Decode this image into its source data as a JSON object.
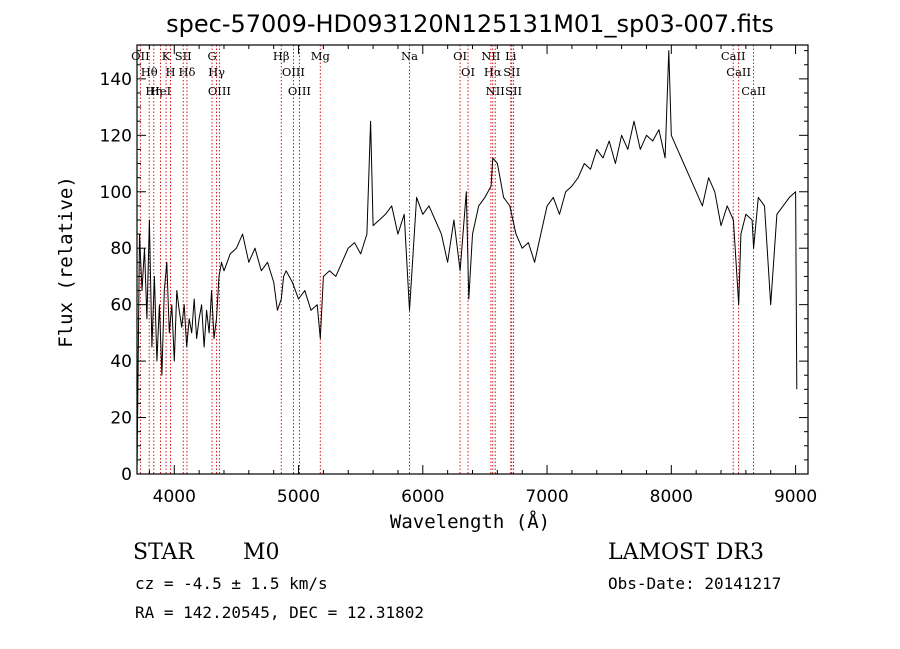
{
  "chart_data": {
    "type": "line",
    "title": "spec-57009-HD093120N125131M01_sp03-007.fits",
    "xlabel": "Wavelength (Å)",
    "ylabel": "Flux (relative)",
    "xlim": [
      3700,
      9100
    ],
    "ylim": [
      0,
      152
    ],
    "x_ticks": [
      4000,
      5000,
      6000,
      7000,
      8000,
      9000
    ],
    "y_ticks": [
      0,
      20,
      40,
      60,
      80,
      100,
      120,
      140
    ],
    "grid": false,
    "colors": {
      "spectrum": "#000000",
      "line_markers": "#cc0000"
    },
    "series": [
      {
        "x": [
          3700,
          3720,
          3740,
          3760,
          3780,
          3800,
          3820,
          3840,
          3860,
          3880,
          3900,
          3920,
          3940,
          3960,
          3980,
          4000,
          4020,
          4040,
          4060,
          4080,
          4100,
          4120,
          4140,
          4160,
          4180,
          4200,
          4220,
          4240,
          4260,
          4280,
          4300,
          4320,
          4340,
          4360,
          4380,
          4400,
          4450,
          4500,
          4550,
          4600,
          4650,
          4700,
          4750,
          4800,
          4830,
          4861,
          4880,
          4900,
          4950,
          5000,
          5050,
          5100,
          5150,
          5175,
          5200,
          5250,
          5300,
          5350,
          5400,
          5450,
          5500,
          5550,
          5580,
          5600,
          5650,
          5700,
          5750,
          5800,
          5850,
          5893,
          5950,
          6000,
          6050,
          6100,
          6150,
          6200,
          6250,
          6300,
          6350,
          6370,
          6400,
          6450,
          6500,
          6550,
          6563,
          6600,
          6650,
          6700,
          6750,
          6800,
          6850,
          6900,
          6950,
          7000,
          7050,
          7100,
          7150,
          7200,
          7250,
          7300,
          7350,
          7400,
          7450,
          7500,
          7550,
          7600,
          7650,
          7700,
          7750,
          7800,
          7850,
          7900,
          7950,
          7980,
          8000,
          8050,
          8100,
          8150,
          8200,
          8250,
          8300,
          8350,
          8400,
          8450,
          8500,
          8542,
          8560,
          8600,
          8650,
          8662,
          8700,
          8750,
          8800,
          8850,
          8900,
          8950,
          9000,
          9010
        ],
        "y": [
          0,
          85,
          65,
          80,
          55,
          90,
          45,
          70,
          40,
          60,
          35,
          65,
          75,
          50,
          60,
          40,
          65,
          58,
          52,
          60,
          45,
          55,
          50,
          62,
          48,
          55,
          60,
          45,
          58,
          50,
          65,
          48,
          55,
          70,
          75,
          72,
          78,
          80,
          85,
          75,
          80,
          72,
          75,
          68,
          58,
          62,
          70,
          72,
          68,
          62,
          65,
          58,
          60,
          48,
          70,
          72,
          70,
          75,
          80,
          82,
          78,
          85,
          125,
          88,
          90,
          92,
          95,
          85,
          92,
          58,
          98,
          92,
          95,
          90,
          85,
          75,
          90,
          72,
          100,
          62,
          85,
          95,
          98,
          102,
          112,
          110,
          98,
          95,
          85,
          80,
          82,
          75,
          85,
          95,
          98,
          92,
          100,
          102,
          105,
          110,
          108,
          115,
          112,
          118,
          110,
          120,
          115,
          125,
          115,
          120,
          118,
          122,
          112,
          150,
          120,
          115,
          110,
          105,
          100,
          95,
          105,
          100,
          88,
          95,
          90,
          60,
          85,
          92,
          90,
          80,
          98,
          95,
          60,
          92,
          95,
          98,
          100,
          30
        ],
        "name": ""
      }
    ],
    "line_markers": [
      {
        "wavelength": 3727,
        "label": "OII"
      },
      {
        "wavelength": 3798,
        "label": "Hθ"
      },
      {
        "wavelength": 3835,
        "label": "Hη"
      },
      {
        "wavelength": 3889,
        "label": "HeI"
      },
      {
        "wavelength": 3934,
        "label": "K"
      },
      {
        "wavelength": 3970,
        "label": "H"
      },
      {
        "wavelength": 4072,
        "label": "SII"
      },
      {
        "wavelength": 4102,
        "label": "Hδ"
      },
      {
        "wavelength": 4304,
        "label": "G"
      },
      {
        "wavelength": 4340,
        "label": "Hγ"
      },
      {
        "wavelength": 4363,
        "label": "OIII"
      },
      {
        "wavelength": 4861,
        "label": "Hβ"
      },
      {
        "wavelength": 4959,
        "label": "OIII"
      },
      {
        "wavelength": 5007,
        "label": "OIII"
      },
      {
        "wavelength": 5175,
        "label": "Mg"
      },
      {
        "wavelength": 5893,
        "label": "Na"
      },
      {
        "wavelength": 6300,
        "label": "OI"
      },
      {
        "wavelength": 6364,
        "label": "OI"
      },
      {
        "wavelength": 6548,
        "label": "NII"
      },
      {
        "wavelength": 6563,
        "label": "Hα"
      },
      {
        "wavelength": 6583,
        "label": "NII"
      },
      {
        "wavelength": 6708,
        "label": "Li"
      },
      {
        "wavelength": 6716,
        "label": "SII"
      },
      {
        "wavelength": 6731,
        "label": "SII"
      },
      {
        "wavelength": 8498,
        "label": "CaII"
      },
      {
        "wavelength": 8542,
        "label": "CaII"
      },
      {
        "wavelength": 8662,
        "label": "CaII"
      }
    ]
  },
  "info": {
    "object_class": "STAR",
    "subclass": "M0",
    "redshift": "cz = -4.5 ± 1.5 km/s",
    "coords": "RA = 142.20545, DEC =  12.31802",
    "survey": "LAMOST DR3",
    "obs_date": "Obs-Date: 20141217"
  }
}
